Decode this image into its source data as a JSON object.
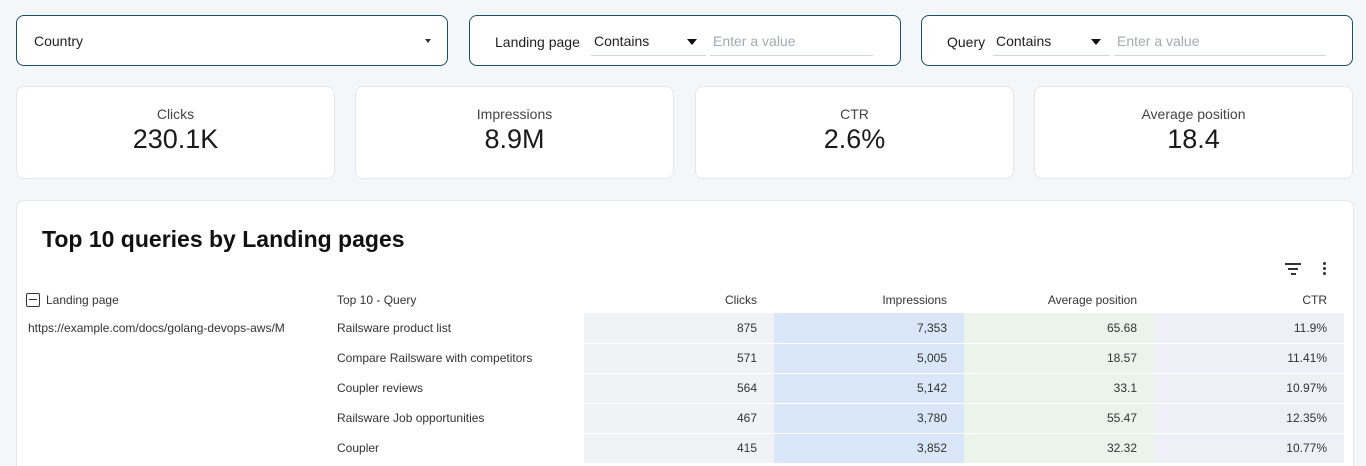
{
  "filters": {
    "country": {
      "label": "Country"
    },
    "landing_page": {
      "label": "Landing page",
      "operator": "Contains",
      "placeholder": "Enter a value"
    },
    "query": {
      "label": "Query",
      "operator": "Contains",
      "placeholder": "Enter a value"
    }
  },
  "kpis": [
    {
      "label": "Clicks",
      "value": "230.1K"
    },
    {
      "label": "Impressions",
      "value": "8.9M"
    },
    {
      "label": "CTR",
      "value": "2.6%"
    },
    {
      "label": "Average position",
      "value": "18.4"
    }
  ],
  "table": {
    "title": "Top 10 queries by Landing pages",
    "columns": [
      "Landing page",
      "Top 10 - Query",
      "Clicks",
      "Impressions",
      "Average position",
      "CTR"
    ],
    "landing_page": "https://example.com/docs/golang-devops-aws/M",
    "rows": [
      {
        "query": "Railsware product list",
        "clicks": "875",
        "impressions": "7,353",
        "position": "65.68",
        "ctr": "11.9%"
      },
      {
        "query": "Compare Railsware with competitors",
        "clicks": "571",
        "impressions": "5,005",
        "position": "18.57",
        "ctr": "11.41%"
      },
      {
        "query": "Coupler reviews",
        "clicks": "564",
        "impressions": "5,142",
        "position": "33.1",
        "ctr": "10.97%"
      },
      {
        "query": "Railsware Job opportunities",
        "clicks": "467",
        "impressions": "3,780",
        "position": "55.47",
        "ctr": "12.35%"
      },
      {
        "query": "Coupler",
        "clicks": "415",
        "impressions": "3,852",
        "position": "32.32",
        "ctr": "10.77%"
      }
    ]
  },
  "icons": {
    "dropdown": "caret-down-icon",
    "filter": "filter-icon",
    "more": "more-vert-icon",
    "collapse": "collapse-minus-icon"
  },
  "colors": {
    "border_accent": "#1c4d69",
    "clicks_bg": "#f0f2f4",
    "impressions_bg": "#d9e7f8",
    "position_bg": "#ebf4ea",
    "ctr_bg": "#efeff8"
  }
}
